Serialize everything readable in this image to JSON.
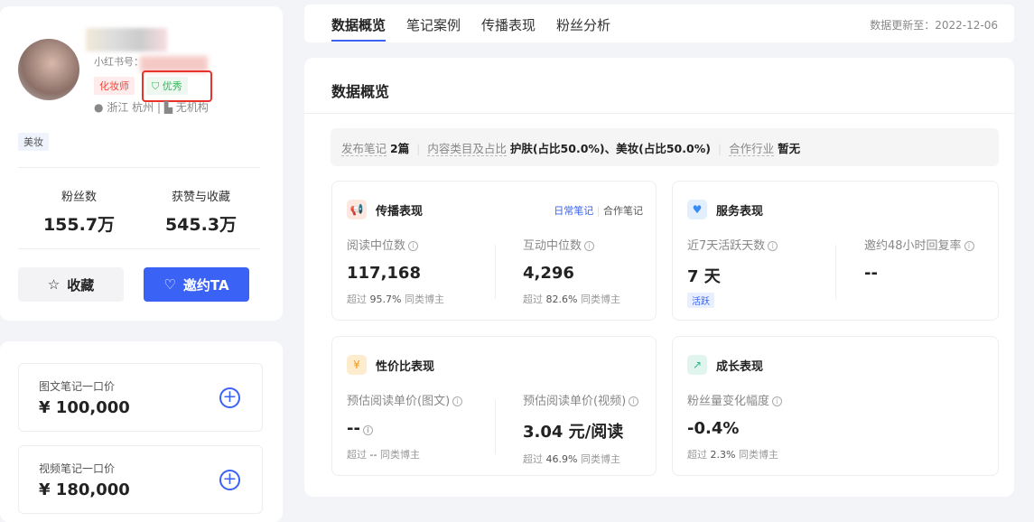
{
  "profile": {
    "xhs_id_label": "小红书号：",
    "tags": [
      "化妆师",
      "优秀"
    ],
    "location": "浙江 杭州",
    "org": "无机构",
    "category": "美妆",
    "fans_label": "粉丝数",
    "fans": "155.7万",
    "likes_label": "获赞与收藏",
    "likes": "545.3万",
    "fav_button": "收藏",
    "invite_button": "邀约TA"
  },
  "prices": [
    {
      "label": "图文笔记一口价",
      "value": "¥ 100,000"
    },
    {
      "label": "视频笔记一口价",
      "value": "¥ 180,000"
    }
  ],
  "tabs": [
    "数据概览",
    "笔记案例",
    "传播表现",
    "粉丝分析"
  ],
  "update": "数据更新至：2022-12-06",
  "overview": {
    "title": "数据概览",
    "summary": {
      "notes_label": "发布笔记",
      "notes": "2篇",
      "cat_label": "内容类目及占比",
      "cat": "护肤(占比50.0%)、美妆(占比50.0%)",
      "ind_label": "合作行业",
      "ind": "暂无"
    },
    "spread": {
      "title": "传播表现",
      "toggle": [
        "日常笔记",
        "合作笔记"
      ],
      "metrics": [
        {
          "label": "阅读中位数",
          "value": "117,168",
          "pre": "超过",
          "pct": "95.7%",
          "post": "同类博主"
        },
        {
          "label": "互动中位数",
          "value": "4,296",
          "pre": "超过",
          "pct": "82.6%",
          "post": "同类博主"
        }
      ]
    },
    "service": {
      "title": "服务表现",
      "metrics": [
        {
          "label": "近7天活跃天数",
          "value": "7 天",
          "badge": "活跃"
        },
        {
          "label": "邀约48小时回复率",
          "value": "--"
        }
      ]
    },
    "cost": {
      "title": "性价比表现",
      "metrics": [
        {
          "label": "预估阅读单价(图文)",
          "value": "--",
          "pre": "超过",
          "pct": "--",
          "post": "同类博主"
        },
        {
          "label": "预估阅读单价(视频)",
          "value": "3.04 元/阅读",
          "pre": "超过",
          "pct": "46.9%",
          "post": "同类博主"
        }
      ]
    },
    "growth": {
      "title": "成长表现",
      "metrics": [
        {
          "label": "粉丝量变化幅度",
          "value": "-0.4%",
          "pre": "超过",
          "pct": "2.3%",
          "post": "同类博主"
        }
      ]
    }
  },
  "colors": {
    "accent": "#3a62f5",
    "red": "#f0473a",
    "green": "#2fb85a"
  }
}
